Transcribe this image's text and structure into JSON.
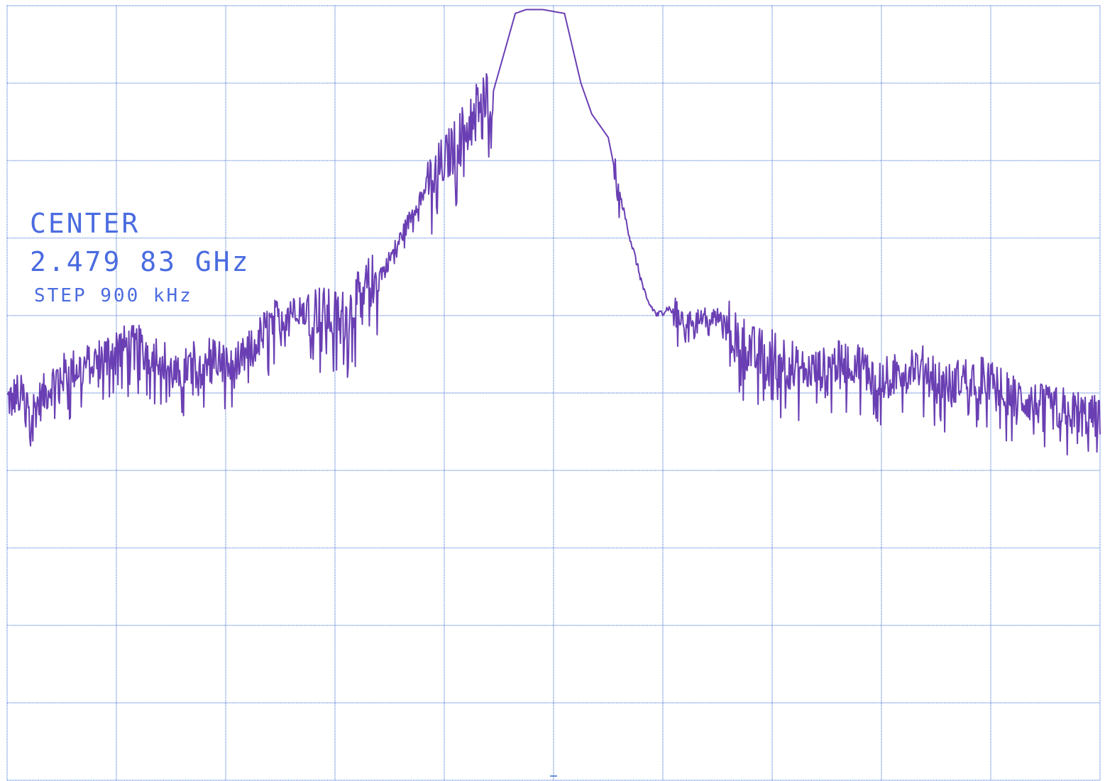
{
  "annotations": {
    "center_label": "CENTER",
    "center_frequency": "2.479 83 GHz",
    "step": "STEP 900 kHz"
  },
  "colors": {
    "grid": "#3d6fd6",
    "trace": "#6a3fb3",
    "text": "#4a6be0",
    "background": "#ffffff"
  },
  "chart_data": {
    "type": "line",
    "title": "",
    "xlabel": "",
    "ylabel": "",
    "grid": true,
    "grid_divisions": {
      "x": 10,
      "y": 10
    },
    "xlim": [
      0,
      10
    ],
    "ylim": [
      0,
      10
    ],
    "center_marker_x": 5,
    "series": [
      {
        "x": [
          0,
          0.1,
          0.25,
          0.45,
          0.6,
          0.8,
          1.0,
          1.2,
          1.4,
          1.55,
          1.7,
          1.9,
          2.05,
          2.2,
          2.35,
          2.5,
          2.65,
          2.8,
          2.95,
          3.1,
          3.3,
          3.45,
          3.6,
          3.8,
          3.95,
          4.1,
          4.25,
          4.35,
          4.45,
          4.55,
          4.65,
          4.75,
          4.85,
          4.9,
          5.1,
          5.15,
          5.25,
          5.35,
          5.5,
          5.6,
          5.7,
          5.85,
          5.95,
          6.05,
          6.2,
          6.35,
          6.5,
          6.65,
          6.85,
          7.05,
          7.25,
          7.45,
          7.6,
          7.8,
          7.95,
          8.1,
          8.25,
          8.45,
          8.6,
          8.75,
          8.95,
          9.15,
          9.35,
          9.55,
          9.75,
          9.9,
          10.0
        ],
        "y": [
          4.9,
          5.0,
          4.8,
          5.2,
          5.3,
          5.4,
          5.6,
          5.6,
          5.5,
          5.2,
          5.4,
          5.5,
          5.3,
          5.5,
          5.8,
          6.0,
          6.2,
          6.1,
          6.0,
          6.0,
          6.4,
          6.6,
          7.0,
          7.6,
          7.9,
          8.2,
          8.6,
          8.8,
          8.9,
          9.4,
          9.9,
          9.95,
          9.95,
          9.95,
          9.9,
          9.6,
          9.0,
          8.6,
          8.3,
          7.6,
          7.0,
          6.2,
          6.0,
          6.1,
          5.9,
          6.0,
          6.0,
          5.8,
          5.5,
          5.5,
          5.3,
          5.3,
          5.4,
          5.4,
          5.2,
          5.2,
          5.4,
          5.3,
          5.1,
          5.2,
          5.2,
          5.0,
          4.9,
          4.8,
          4.8,
          4.7,
          4.7
        ]
      }
    ]
  }
}
